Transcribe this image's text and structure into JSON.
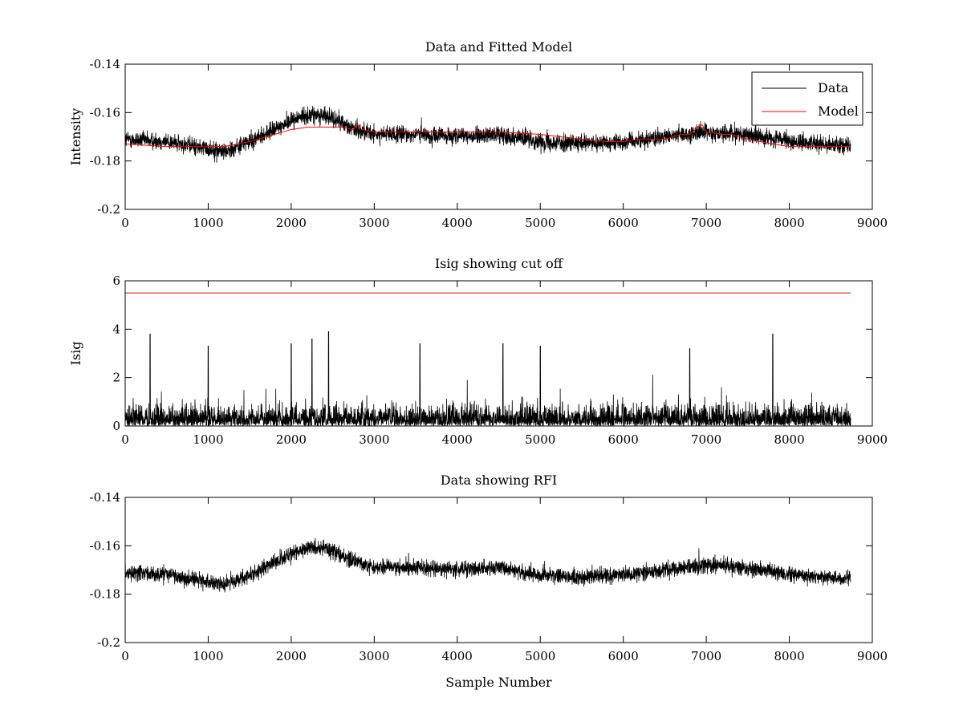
{
  "chart_data": [
    {
      "type": "line",
      "title": "Data and Fitted Model",
      "xlabel": "",
      "ylabel": "Intensity",
      "xlim": [
        0,
        9000
      ],
      "ylim": [
        -0.2,
        -0.14
      ],
      "xticks": [
        0,
        1000,
        2000,
        3000,
        4000,
        5000,
        6000,
        7000,
        8000,
        9000
      ],
      "yticks": [
        -0.2,
        -0.18,
        -0.16,
        -0.14
      ],
      "ytick_labels": [
        "-0.2",
        "-0.18",
        "-0.16",
        "-0.14"
      ],
      "grid": false,
      "legend": {
        "placement": "top-right",
        "entries": [
          "Data",
          "Model"
        ]
      },
      "series": [
        {
          "name": "Data",
          "color": "#000000",
          "style": "noisy",
          "n_samples": 8740,
          "noise_halfwidth": 0.006,
          "x": [
            0,
            500,
            1000,
            1200,
            1500,
            1800,
            2000,
            2200,
            2400,
            2600,
            2800,
            3000,
            3500,
            4000,
            4500,
            5000,
            5500,
            6000,
            6500,
            7000,
            7500,
            8000,
            8500,
            8740
          ],
          "y": [
            -0.171,
            -0.172,
            -0.175,
            -0.176,
            -0.172,
            -0.167,
            -0.163,
            -0.161,
            -0.161,
            -0.164,
            -0.167,
            -0.169,
            -0.169,
            -0.17,
            -0.169,
            -0.172,
            -0.173,
            -0.172,
            -0.17,
            -0.168,
            -0.169,
            -0.172,
            -0.173,
            -0.174
          ]
        },
        {
          "name": "Model",
          "color": "#ff0000",
          "style": "line",
          "x": [
            0,
            500,
            1000,
            1200,
            1500,
            1800,
            2000,
            2200,
            2400,
            2600,
            2750,
            2800,
            2850,
            3000,
            3300,
            3500,
            4000,
            4500,
            5000,
            5500,
            5800,
            6000,
            6200,
            6400,
            6500,
            6600,
            6700,
            6800,
            6900,
            6950,
            7000,
            7200,
            7300,
            7400,
            7500,
            7800,
            8000,
            8500,
            8740
          ],
          "y": [
            -0.173,
            -0.174,
            -0.174,
            -0.174,
            -0.172,
            -0.169,
            -0.167,
            -0.166,
            -0.166,
            -0.166,
            -0.167,
            -0.165,
            -0.167,
            -0.168,
            -0.168,
            -0.168,
            -0.168,
            -0.168,
            -0.169,
            -0.171,
            -0.172,
            -0.172,
            -0.171,
            -0.171,
            -0.171,
            -0.17,
            -0.169,
            -0.169,
            -0.166,
            -0.165,
            -0.168,
            -0.169,
            -0.169,
            -0.17,
            -0.171,
            -0.173,
            -0.174,
            -0.174,
            -0.174
          ]
        }
      ]
    },
    {
      "type": "line",
      "title": "Isig showing cut off",
      "xlabel": "",
      "ylabel": "Isig",
      "xlim": [
        0,
        9000
      ],
      "ylim": [
        0,
        6
      ],
      "xticks": [
        0,
        1000,
        2000,
        3000,
        4000,
        5000,
        6000,
        7000,
        8000,
        9000
      ],
      "yticks": [
        0,
        2,
        4,
        6
      ],
      "ytick_labels": [
        "0",
        "2",
        "4",
        "6"
      ],
      "grid": false,
      "series": [
        {
          "color": "#000000",
          "style": "noise-positive",
          "n_samples": 8740,
          "scale": 0.85,
          "x": [
            0,
            8740
          ],
          "peaks": [
            [
              300,
              3.8
            ],
            [
              1000,
              3.3
            ],
            [
              2000,
              3.4
            ],
            [
              2250,
              3.6
            ],
            [
              2450,
              3.9
            ],
            [
              3550,
              3.4
            ],
            [
              4550,
              3.4
            ],
            [
              5000,
              3.3
            ],
            [
              6800,
              3.2
            ],
            [
              7800,
              3.8
            ]
          ]
        },
        {
          "color": "#ff0000",
          "style": "line",
          "x": [
            0,
            8740
          ],
          "y": [
            5.5,
            5.5
          ]
        }
      ]
    },
    {
      "type": "line",
      "title": "Data showing RFI",
      "xlabel": "Sample Number",
      "ylabel": "",
      "xlim": [
        0,
        9000
      ],
      "ylim": [
        -0.2,
        -0.14
      ],
      "xticks": [
        0,
        1000,
        2000,
        3000,
        4000,
        5000,
        6000,
        7000,
        8000,
        9000
      ],
      "yticks": [
        -0.2,
        -0.18,
        -0.16,
        -0.14
      ],
      "ytick_labels": [
        "-0.2",
        "-0.18",
        "-0.16",
        "-0.14"
      ],
      "grid": false,
      "series": [
        {
          "color": "#000000",
          "style": "noisy",
          "n_samples": 8740,
          "noise_halfwidth": 0.0055,
          "x": [
            0,
            500,
            1000,
            1200,
            1500,
            1800,
            2000,
            2200,
            2400,
            2600,
            2800,
            3000,
            3500,
            4000,
            4500,
            5000,
            5500,
            6000,
            6500,
            7000,
            7500,
            8000,
            8500,
            8740
          ],
          "y": [
            -0.171,
            -0.172,
            -0.175,
            -0.176,
            -0.172,
            -0.167,
            -0.163,
            -0.161,
            -0.161,
            -0.164,
            -0.167,
            -0.169,
            -0.169,
            -0.17,
            -0.169,
            -0.172,
            -0.173,
            -0.172,
            -0.17,
            -0.168,
            -0.169,
            -0.172,
            -0.173,
            -0.174
          ]
        }
      ]
    }
  ]
}
